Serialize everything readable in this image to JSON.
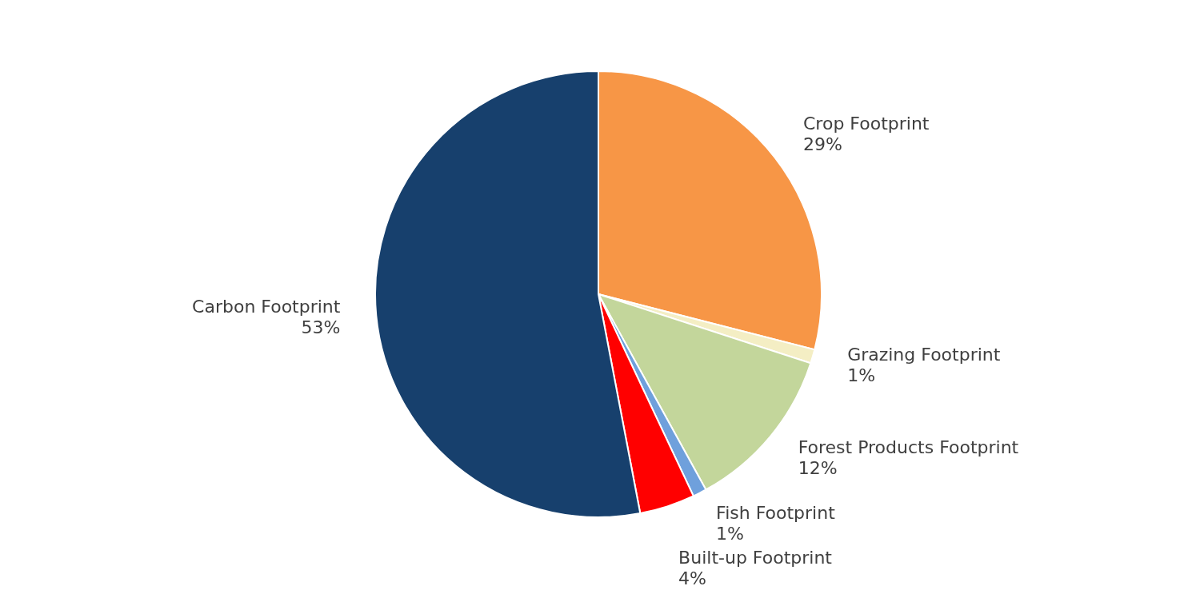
{
  "chart_data": {
    "type": "pie",
    "categories": [
      "Crop Footprint",
      "Grazing Footprint",
      "Forest Products Footprint",
      "Fish Footprint",
      "Built-up Footprint",
      "Carbon Footprint"
    ],
    "values": [
      29,
      1,
      12,
      1,
      4,
      53
    ],
    "value_labels": [
      "29%",
      "1%",
      "12%",
      "1%",
      "4%",
      "53%"
    ],
    "colors": [
      "#f79646",
      "#f4eec4",
      "#c3d69b",
      "#6fa0dc",
      "#ff0000",
      "#17406d"
    ],
    "legend": false
  }
}
